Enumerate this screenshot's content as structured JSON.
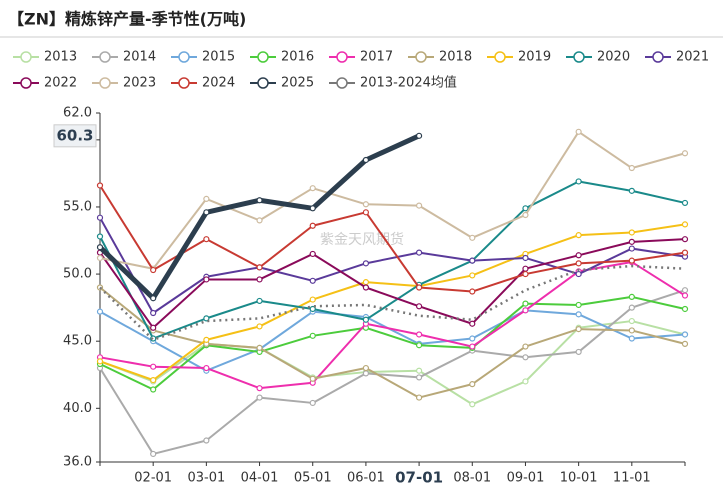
{
  "chart_data": {
    "type": "line",
    "title": "【ZN】精炼锌产量-季节性(万吨)",
    "watermark": "紫金天风期货",
    "categories": [
      null,
      "02-01",
      "03-01",
      "04-01",
      "05-01",
      "06-01",
      "07-01",
      "08-01",
      "09-01",
      "10-01",
      "11-01",
      null
    ],
    "ylim": [
      36,
      62
    ],
    "yticks": [
      {
        "value": 36,
        "label": "36.0"
      },
      {
        "value": 40,
        "label": "40.0"
      },
      {
        "value": 45,
        "label": "45.0"
      },
      {
        "value": 50,
        "label": "50.0"
      },
      {
        "value": 55,
        "label": "55.0"
      },
      {
        "value": 60,
        "label": "60.0"
      },
      {
        "value": 62,
        "label": "62.0"
      }
    ],
    "crosshair": {
      "x": "07-01",
      "y": 60.3
    },
    "series": [
      {
        "name": "2013",
        "color": "#b8e0a4",
        "values": [
          43.5,
          42.0,
          44.8,
          44.5,
          42.3,
          42.7,
          42.8,
          40.3,
          42.0,
          46.0,
          46.5,
          45.5
        ]
      },
      {
        "name": "2014",
        "color": "#aaaaaa",
        "values": [
          43.0,
          36.6,
          37.6,
          40.8,
          40.4,
          42.6,
          42.3,
          44.3,
          43.8,
          44.2,
          47.5,
          48.8
        ]
      },
      {
        "name": "2015",
        "color": "#6fa8dc",
        "values": [
          47.2,
          45.0,
          42.8,
          44.4,
          47.2,
          46.8,
          44.8,
          45.2,
          47.3,
          47.0,
          45.2,
          45.5
        ]
      },
      {
        "name": "2016",
        "color": "#4ccc3c",
        "values": [
          43.3,
          41.4,
          44.7,
          44.2,
          45.4,
          46.0,
          44.7,
          44.5,
          47.8,
          47.7,
          48.3,
          47.4
        ]
      },
      {
        "name": "2017",
        "color": "#ee2ead",
        "values": [
          43.8,
          43.1,
          43.0,
          41.5,
          41.9,
          46.3,
          45.5,
          44.6,
          47.3,
          50.2,
          50.9,
          48.4
        ]
      },
      {
        "name": "2018",
        "color": "#b8a878",
        "values": [
          49.0,
          45.8,
          44.8,
          44.5,
          42.2,
          43.0,
          40.8,
          41.8,
          44.6,
          45.9,
          45.8,
          44.8
        ]
      },
      {
        "name": "2019",
        "color": "#f5c016",
        "values": [
          43.5,
          42.1,
          45.1,
          46.1,
          48.1,
          49.4,
          49.1,
          49.9,
          51.5,
          52.9,
          53.1,
          53.7
        ]
      },
      {
        "name": "2020",
        "color": "#1a8a8a",
        "values": [
          52.8,
          45.2,
          46.7,
          48.0,
          47.4,
          46.6,
          49.2,
          51.0,
          54.9,
          56.9,
          56.2,
          55.3
        ]
      },
      {
        "name": "2021",
        "color": "#5a3a9a",
        "values": [
          54.2,
          47.1,
          49.8,
          50.5,
          49.5,
          50.8,
          51.6,
          51.0,
          51.2,
          50.0,
          51.9,
          51.3
        ]
      },
      {
        "name": "2022",
        "color": "#8a0a5a",
        "values": [
          51.6,
          46.0,
          49.6,
          49.6,
          51.5,
          49.0,
          47.6,
          46.3,
          50.4,
          51.4,
          52.4,
          52.6
        ]
      },
      {
        "name": "2023",
        "color": "#cdbba0",
        "values": [
          51.2,
          50.4,
          55.6,
          54.0,
          56.4,
          55.2,
          55.1,
          52.7,
          54.4,
          60.6,
          57.9,
          59.0
        ]
      },
      {
        "name": "2024",
        "color": "#c83a32",
        "values": [
          56.6,
          50.3,
          52.6,
          50.5,
          53.6,
          54.6,
          49.0,
          48.7,
          50.0,
          50.8,
          51.0,
          51.6
        ]
      },
      {
        "name": "2025",
        "color": "#2c3e4e",
        "values": [
          52.0,
          48.2,
          54.6,
          55.5,
          54.9,
          58.5,
          60.3,
          null,
          null,
          null,
          null,
          null
        ]
      },
      {
        "name": "2013-2024均值",
        "color": "#777777",
        "values": [
          49.0,
          45.1,
          46.5,
          46.7,
          47.6,
          47.7,
          46.9,
          46.6,
          48.8,
          50.3,
          50.6,
          50.4
        ]
      }
    ]
  }
}
